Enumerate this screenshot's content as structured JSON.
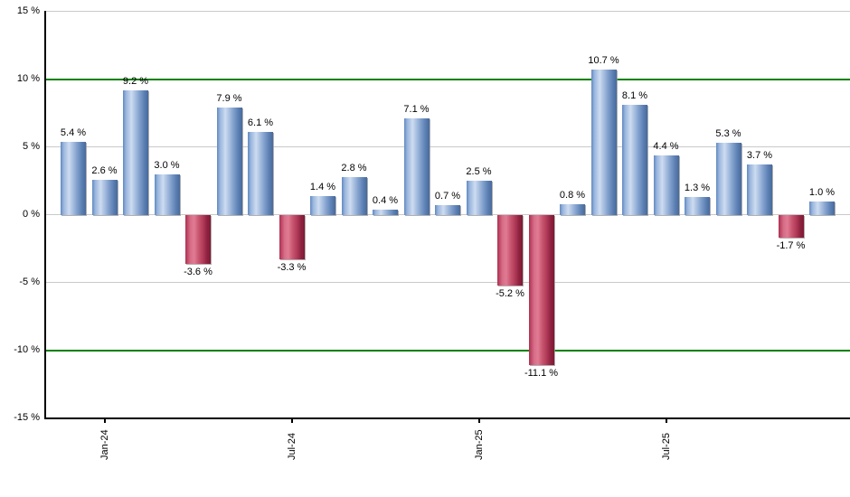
{
  "chart_data": {
    "type": "bar",
    "title": "",
    "unit": "%",
    "grid": "horizontal",
    "legend": "none",
    "ylim": [
      -15,
      15
    ],
    "values": [
      5.4,
      2.6,
      9.2,
      3.0,
      -3.6,
      7.9,
      6.1,
      -3.3,
      1.4,
      2.8,
      0.4,
      7.1,
      0.7,
      2.5,
      -5.2,
      -11.1,
      0.8,
      10.7,
      8.1,
      4.4,
      1.3,
      5.3,
      3.7,
      -1.7,
      1.0
    ],
    "bar_labels": [
      "5.4 %",
      "2.6 %",
      "9.2 %",
      "3.0 %",
      "-3.6 %",
      "7.9 %",
      "6.1 %",
      "-3.3 %",
      "1.4 %",
      "2.8 %",
      "0.4 %",
      "7.1 %",
      "0.7 %",
      "2.5 %",
      "-5.2 %",
      "-11.1 %",
      "0.8 %",
      "10.7 %",
      "8.1 %",
      "4.4 %",
      "1.3 %",
      "5.3 %",
      "3.7 %",
      "-1.7 %",
      "1.0 %"
    ],
    "x_ticks": [
      {
        "bar_index": 1,
        "label": "Jan-24"
      },
      {
        "bar_index": 7,
        "label": "Jul-24"
      },
      {
        "bar_index": 13,
        "label": "Jan-25"
      },
      {
        "bar_index": 19,
        "label": "Jul-25"
      }
    ],
    "y_ticks": [
      {
        "value": 15,
        "label": "15 %"
      },
      {
        "value": 10,
        "label": "10 %"
      },
      {
        "value": 5,
        "label": "5 %"
      },
      {
        "value": 0,
        "label": "0 %"
      },
      {
        "value": -5,
        "label": "-5 %"
      },
      {
        "value": -10,
        "label": "-10 %"
      },
      {
        "value": -15,
        "label": "-15 %"
      }
    ],
    "highlight_lines": [
      10,
      -10
    ],
    "colors": {
      "positive_bar_start": "#6089c0",
      "positive_bar_light": "#cddcf0",
      "positive_bar_edge": "#48699c",
      "negative_bar_start": "#ad3050",
      "negative_bar_light": "#e07b93",
      "negative_bar_edge": "#7d1a32",
      "highlight_line": "#008000",
      "gridline": "#c9c9c9",
      "axis": "#000000",
      "label_text": "#000000",
      "background": "#ffffff"
    }
  }
}
